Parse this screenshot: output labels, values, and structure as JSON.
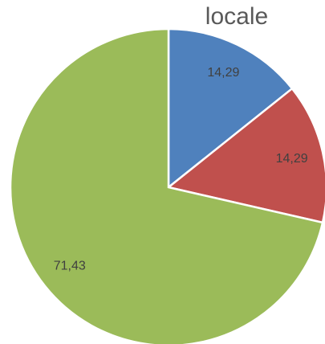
{
  "chart_data": {
    "type": "pie",
    "title": "locale",
    "categories": [
      null,
      null,
      null
    ],
    "values": [
      14.29,
      14.29,
      71.43
    ],
    "value_labels": [
      "14,29",
      "14,29",
      "71,43"
    ],
    "colors": [
      "#4f81bd",
      "#c0504d",
      "#9bbb59"
    ]
  }
}
